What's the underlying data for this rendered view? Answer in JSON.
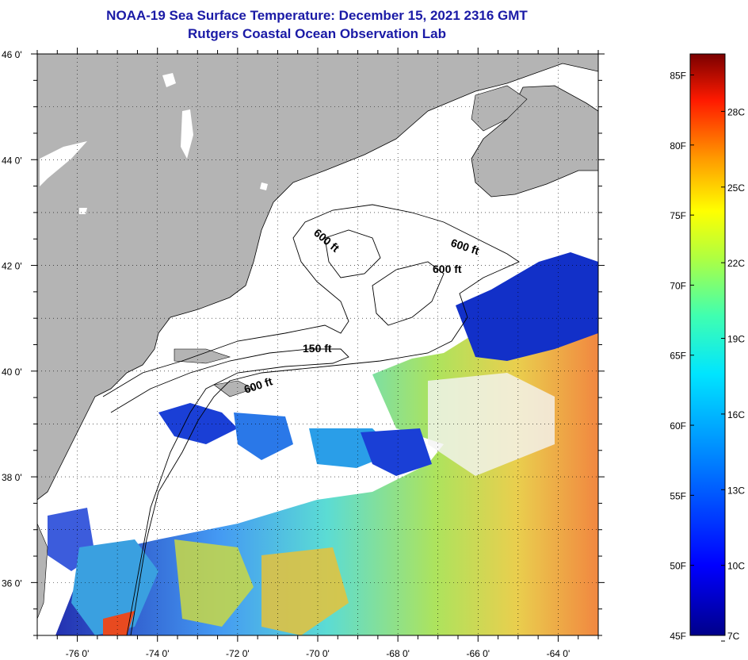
{
  "title": "NOAA-19 Sea Surface Temperature:  December 15, 2021 2316 GMT",
  "subtitle": "Rutgers Coastal Ocean Observation Lab",
  "map": {
    "lat_labels": [
      "46 0'",
      "44 0'",
      "42 0'",
      "40 0'",
      "38 0'",
      "36 0'"
    ],
    "lat_values": [
      46,
      44,
      42,
      40,
      38,
      36
    ],
    "lon_labels": [
      "-76 0'",
      "-74 0'",
      "-72 0'",
      "-70 0'",
      "-68 0'",
      "-66 0'",
      "-64 0'"
    ],
    "lon_values": [
      -76,
      -74,
      -72,
      -70,
      -68,
      -66,
      -64
    ],
    "lat_range": [
      35,
      46
    ],
    "lon_range": [
      -77,
      -63
    ],
    "isobath_labels": [
      "600 ft",
      "600 ft",
      "600 ft",
      "150 ft",
      "600 ft"
    ],
    "colors": {
      "land": "#b4b4b4",
      "cloud": "#ffffff",
      "contour": "#000000",
      "title": "#1a1aa6"
    }
  },
  "colorbar": {
    "fahrenheit_labels": [
      "85F",
      "80F",
      "75F",
      "70F",
      "65F",
      "60F",
      "55F",
      "50F",
      "45F"
    ],
    "fahrenheit_values": [
      85,
      80,
      75,
      70,
      65,
      60,
      55,
      50,
      45
    ],
    "celsius_labels": [
      "28C",
      "25C",
      "22C",
      "19C",
      "16C",
      "13C",
      "10C",
      "7C"
    ],
    "celsius_values": [
      28,
      25,
      22,
      19,
      16,
      13,
      10,
      7
    ],
    "min_f": 45,
    "max_f": 86.5
  }
}
